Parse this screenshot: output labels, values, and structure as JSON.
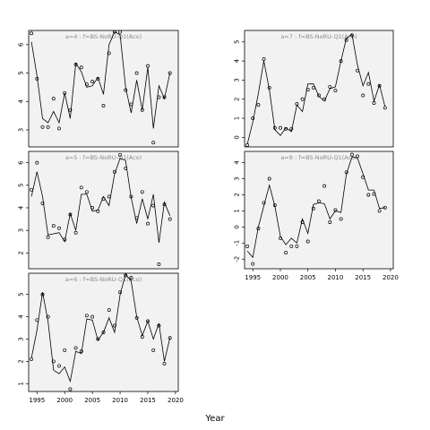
{
  "chart_data": {
    "type": "scatter",
    "xlabel": "Year",
    "x_ticks": [
      1995,
      2000,
      2005,
      2010,
      2015,
      2020
    ],
    "xlim": [
      1993.5,
      2020.5
    ],
    "panels": [
      {
        "title": "a=4 : f=BS-NoRU-Q1(Aco)",
        "ylim": [
          2.4,
          6.5
        ],
        "y_ticks": [
          3,
          4,
          5,
          6
        ],
        "x": [
          1994,
          1995,
          1996,
          1997,
          1998,
          1999,
          2000,
          2001,
          2002,
          2003,
          2004,
          2005,
          2006,
          2007,
          2008,
          2009,
          2010,
          2011,
          2012,
          2013,
          2014,
          2015,
          2016,
          2017,
          2018,
          2019
        ],
        "observed": [
          6.4,
          4.8,
          3.1,
          3.1,
          4.1,
          3.05,
          4.3,
          3.7,
          5.3,
          5.2,
          4.6,
          4.7,
          4.8,
          3.85,
          5.7,
          6.45,
          6.45,
          4.4,
          3.9,
          5.0,
          3.7,
          5.25,
          2.55,
          4.15,
          4.15,
          5.0
        ],
        "fitted": [
          6.1,
          4.9,
          3.4,
          3.25,
          3.65,
          3.25,
          4.3,
          3.4,
          5.35,
          5.05,
          4.5,
          4.55,
          4.85,
          4.25,
          6.0,
          6.45,
          6.35,
          4.5,
          3.6,
          4.75,
          3.7,
          5.2,
          3.05,
          4.55,
          4.1,
          5.0
        ]
      },
      {
        "title": "a=7 : f=BS-NoRU-Q1(Aco)",
        "ylim": [
          -0.5,
          5.6
        ],
        "y_ticks": [
          0,
          1,
          2,
          3,
          4,
          5
        ],
        "x": [
          1994,
          1995,
          1996,
          1997,
          1998,
          1999,
          2000,
          2001,
          2002,
          2003,
          2004,
          2005,
          2006,
          2007,
          2008,
          2009,
          2010,
          2011,
          2012,
          2013,
          2014,
          2015,
          2016,
          2017,
          2018,
          2019
        ],
        "observed": [
          -0.4,
          1.0,
          1.7,
          4.1,
          2.6,
          0.5,
          0.5,
          0.45,
          0.45,
          1.75,
          2.0,
          2.5,
          2.6,
          2.2,
          2.0,
          2.65,
          2.45,
          4.0,
          5.1,
          5.35,
          3.5,
          2.2,
          2.8,
          1.8,
          2.7,
          1.55
        ],
        "fitted": [
          -0.35,
          0.8,
          2.3,
          4.0,
          2.5,
          0.4,
          0.1,
          0.5,
          0.3,
          1.7,
          1.35,
          2.8,
          2.8,
          2.15,
          1.9,
          2.55,
          2.65,
          4.0,
          5.2,
          5.4,
          3.8,
          2.7,
          3.4,
          1.9,
          2.75,
          1.6
        ]
      },
      {
        "title": "a=5 : f=BS-NoRU-Q1(Aco)",
        "ylim": [
          1.3,
          6.5
        ],
        "y_ticks": [
          2,
          3,
          4,
          5,
          6
        ],
        "x": [
          1994,
          1995,
          1996,
          1997,
          1998,
          1999,
          2000,
          2001,
          2002,
          2003,
          2004,
          2005,
          2006,
          2007,
          2008,
          2009,
          2010,
          2011,
          2012,
          2013,
          2014,
          2015,
          2016,
          2017,
          2018,
          2019
        ],
        "observed": [
          4.8,
          6.0,
          4.2,
          2.7,
          3.2,
          3.1,
          2.6,
          3.7,
          2.9,
          4.9,
          4.7,
          4.0,
          3.85,
          4.4,
          4.5,
          5.6,
          6.35,
          5.75,
          4.5,
          3.55,
          4.7,
          3.3,
          4.1,
          1.5,
          4.15,
          3.5
        ],
        "fitted": [
          4.5,
          5.6,
          4.5,
          2.8,
          2.85,
          2.9,
          2.5,
          3.75,
          3.0,
          4.6,
          4.6,
          3.85,
          3.9,
          4.5,
          4.1,
          5.5,
          6.2,
          6.1,
          4.45,
          3.3,
          4.4,
          3.5,
          4.6,
          2.45,
          4.25,
          3.65
        ]
      },
      {
        "title": "a=8 : f=BS-NoRU-Q1(Aco)",
        "ylim": [
          -2.6,
          4.7
        ],
        "y_ticks": [
          -2,
          -1,
          0,
          1,
          2,
          3,
          4
        ],
        "x": [
          1994,
          1995,
          1996,
          1997,
          1998,
          1999,
          2000,
          2001,
          2002,
          2003,
          2004,
          2005,
          2006,
          2007,
          2008,
          2009,
          2010,
          2011,
          2012,
          2013,
          2014,
          2015,
          2016,
          2017,
          2018,
          2019
        ],
        "observed": [
          -1.2,
          -2.3,
          -0.1,
          1.5,
          3.0,
          1.35,
          -0.7,
          -1.6,
          -1.2,
          -1.2,
          0.3,
          -0.9,
          1.15,
          1.6,
          2.55,
          0.3,
          1.05,
          0.5,
          3.4,
          4.5,
          4.4,
          3.1,
          2.0,
          2.05,
          1.0,
          1.2
        ],
        "fitted": [
          -1.5,
          -1.9,
          0.0,
          1.3,
          2.6,
          1.3,
          -0.6,
          -1.1,
          -0.7,
          -1.0,
          0.5,
          -0.4,
          1.4,
          1.5,
          1.45,
          0.5,
          1.0,
          0.9,
          3.3,
          4.35,
          4.3,
          3.3,
          2.3,
          2.3,
          1.15,
          1.2
        ]
      },
      {
        "title": "a=6 : f=BS-NoRU-Q1(Aco)",
        "ylim": [
          0.65,
          5.95
        ],
        "y_ticks": [
          1,
          2,
          3,
          4,
          5
        ],
        "x": [
          1994,
          1995,
          1996,
          1997,
          1998,
          1999,
          2000,
          2001,
          2002,
          2003,
          2004,
          2005,
          2006,
          2007,
          2008,
          2009,
          2010,
          2011,
          2012,
          2013,
          2014,
          2015,
          2016,
          2017,
          2018,
          2019
        ],
        "observed": [
          2.1,
          3.85,
          5.0,
          4.0,
          2.0,
          1.8,
          2.5,
          0.75,
          2.6,
          2.45,
          4.05,
          4.0,
          3.0,
          3.3,
          4.3,
          3.6,
          5.1,
          5.85,
          5.75,
          3.95,
          3.1,
          3.8,
          2.5,
          3.6,
          1.9,
          3.05
        ],
        "fitted": [
          2.15,
          3.4,
          5.1,
          3.8,
          1.6,
          1.45,
          1.75,
          1.1,
          2.45,
          2.35,
          3.9,
          3.85,
          2.95,
          3.3,
          3.95,
          3.3,
          5.0,
          5.9,
          5.6,
          4.0,
          3.15,
          3.8,
          3.0,
          3.7,
          2.0,
          3.05
        ]
      }
    ]
  }
}
